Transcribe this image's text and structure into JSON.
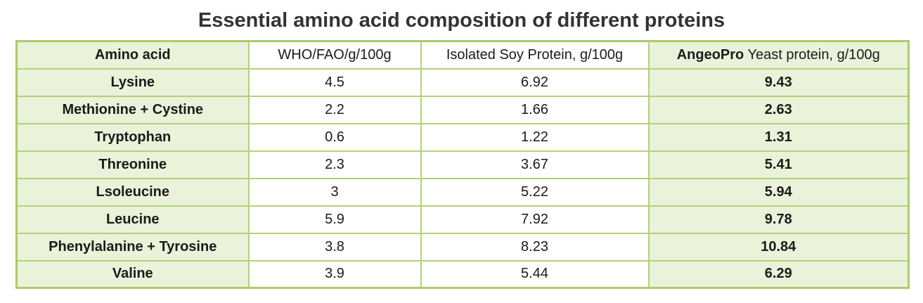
{
  "title": "Essential amino acid composition of different proteins",
  "colors": {
    "cell_green_background": "#eaf2da",
    "table_border_green": "#b3d277",
    "title_text": "#333333",
    "cell_text": "#1b1b1b",
    "corner_accent": "#e4572e"
  },
  "chart_data": {
    "type": "table",
    "title": "Essential amino acid composition of different proteins",
    "columns": [
      {
        "label": "Amino acid"
      },
      {
        "label": "WHO/FAO/g/100g"
      },
      {
        "label": "Isolated Soy Protein, g/100g"
      },
      {
        "brand": "AngeoPro",
        "label": " Yeast protein, g/100g"
      }
    ],
    "rows": [
      [
        "Lysine",
        "4.5",
        "6.92",
        "9.43"
      ],
      [
        "Methionine + Cystine",
        "2.2",
        "1.66",
        "2.63"
      ],
      [
        "Tryptophan",
        "0.6",
        "1.22",
        "1.31"
      ],
      [
        "Threonine",
        "2.3",
        "3.67",
        "5.41"
      ],
      [
        "Lsoleucine",
        "3",
        "5.22",
        "5.94"
      ],
      [
        "Leucine",
        "5.9",
        "7.92",
        "9.78"
      ],
      [
        "Phenylalanine + Tyrosine",
        "3.8",
        "8.23",
        "10.84"
      ],
      [
        "Valine",
        "3.9",
        "5.44",
        "6.29"
      ]
    ]
  }
}
